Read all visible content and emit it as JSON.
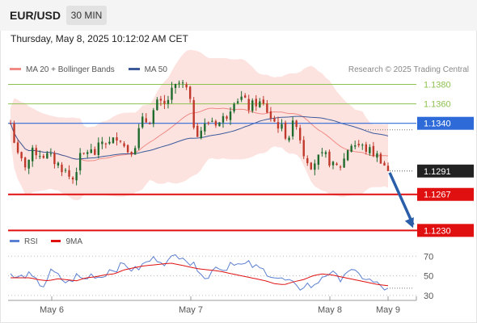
{
  "header": {
    "pair": "EUR/USD",
    "timeframe": "30 MIN",
    "datetime": "Thursday, May 8, 2025 10:12:02 AM CET",
    "credit": "Research © 2025 Trading Central"
  },
  "colors": {
    "ma20": "#f08a84",
    "band_fill": "#fde3e0",
    "ma50": "#3c5a9a",
    "resistance": "#8dc14f",
    "pivot": "#2f6bd8",
    "support": "#e01010",
    "bull": "#1e6b2d",
    "bear": "#c0392b",
    "rsi": "#5b7fd1",
    "rsi_ma": "#e01010",
    "arrow": "#2a5ea8"
  },
  "legend_top": [
    {
      "name": "MA 20 + Bollinger Bands",
      "color": "#f08a84"
    },
    {
      "name": "MA 50",
      "color": "#3c5a9a"
    }
  ],
  "legend_bottom": [
    {
      "name": "RSI",
      "color": "#5b7fd1"
    },
    {
      "name": "9MA",
      "color": "#e01010"
    }
  ],
  "chart_data": [
    {
      "type": "candlestick",
      "title": "",
      "x_tick_labels": [
        "May 6",
        "May 7",
        "May 8",
        "May 9"
      ],
      "ylim": [
        1.1222,
        1.1392
      ],
      "candle_count": 104,
      "current_price": {
        "value": 1.1291,
        "label": "1.1291"
      },
      "levels": [
        {
          "value": 1.138,
          "label": "1.1380",
          "kind": "resistance"
        },
        {
          "value": 1.136,
          "label": "1.1360",
          "kind": "resistance"
        },
        {
          "value": 1.134,
          "label": "1.1340",
          "kind": "pivot"
        },
        {
          "value": 1.1267,
          "label": "1.1267",
          "kind": "support"
        },
        {
          "value": 1.123,
          "label": "1.1230",
          "kind": "support"
        }
      ],
      "projection": {
        "from": 1.1291,
        "to": 1.123
      },
      "series": [
        {
          "name": "MA 20 + Bollinger Bands"
        },
        {
          "name": "MA 50"
        }
      ],
      "close_path": [
        1.134,
        1.1304,
        1.1297,
        1.1312,
        1.1308,
        1.1306,
        1.1299,
        1.1292,
        1.1281,
        1.1304,
        1.1312,
        1.1309,
        1.1323,
        1.1318,
        1.133,
        1.1312,
        1.1314,
        1.1342,
        1.1343,
        1.136,
        1.1358,
        1.1373,
        1.1382,
        1.1373,
        1.133,
        1.1335,
        1.1344,
        1.134,
        1.1348,
        1.1365,
        1.1366,
        1.1356,
        1.1362,
        1.1357,
        1.1343,
        1.1337,
        1.1325,
        1.1345,
        1.131,
        1.1298,
        1.1304,
        1.1306,
        1.1294,
        1.1297,
        1.1319,
        1.1318,
        1.1314,
        1.131,
        1.1304,
        1.1291
      ]
    },
    {
      "type": "line",
      "title": "",
      "ylabel": "",
      "yticks": [
        70,
        50,
        30
      ],
      "ylim": [
        25,
        76
      ],
      "series": [
        {
          "name": "RSI",
          "path": [
            50,
            47,
            52,
            45,
            40,
            55,
            48,
            42,
            50,
            46,
            52,
            48,
            56,
            58,
            62,
            55,
            60,
            66,
            68,
            63,
            70,
            72,
            61,
            58,
            45,
            62,
            55,
            66,
            60,
            62,
            58,
            55,
            50,
            46,
            44,
            36,
            42,
            38,
            50,
            54,
            46,
            56,
            52,
            49,
            44,
            40,
            35
          ]
        },
        {
          "name": "9MA",
          "path": [
            48,
            48,
            48,
            46,
            45,
            47,
            46,
            45,
            48,
            49,
            51,
            52,
            56,
            58,
            60,
            61,
            62,
            63,
            61,
            59,
            57,
            56,
            55,
            53,
            51,
            49,
            47,
            45,
            42,
            41,
            44,
            46,
            50,
            52,
            51,
            49,
            47,
            45,
            43,
            41,
            40
          ]
        }
      ]
    }
  ]
}
